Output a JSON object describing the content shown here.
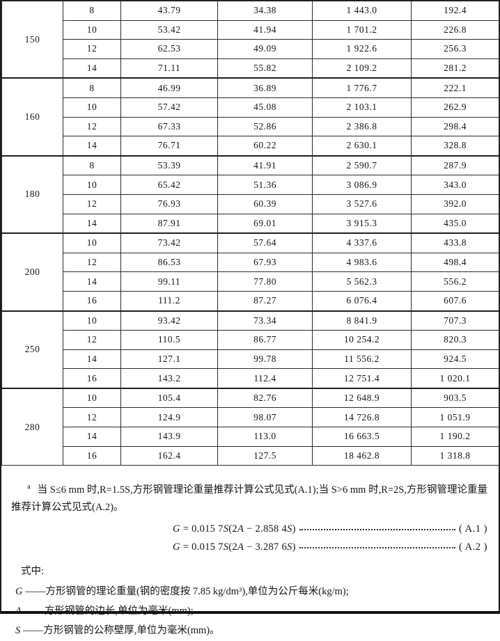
{
  "table": {
    "groups": [
      {
        "size": "150",
        "rows": [
          [
            "8",
            "43.79",
            "34.38",
            "1 443.0",
            "192.4"
          ],
          [
            "10",
            "53.42",
            "41.94",
            "1 701.2",
            "226.8"
          ],
          [
            "12",
            "62.53",
            "49.09",
            "1 922.6",
            "256.3"
          ],
          [
            "14",
            "71.11",
            "55.82",
            "2 109.2",
            "281.2"
          ]
        ]
      },
      {
        "size": "160",
        "rows": [
          [
            "8",
            "46.99",
            "36.89",
            "1 776.7",
            "222.1"
          ],
          [
            "10",
            "57.42",
            "45.08",
            "2 103.1",
            "262.9"
          ],
          [
            "12",
            "67.33",
            "52.86",
            "2 386.8",
            "298.4"
          ],
          [
            "14",
            "76.71",
            "60.22",
            "2 630.1",
            "328.8"
          ]
        ]
      },
      {
        "size": "180",
        "rows": [
          [
            "8",
            "53.39",
            "41.91",
            "2 590.7",
            "287.9"
          ],
          [
            "10",
            "65.42",
            "51.36",
            "3 086.9",
            "343.0"
          ],
          [
            "12",
            "76.93",
            "60.39",
            "3 527.6",
            "392.0"
          ],
          [
            "14",
            "87.91",
            "69.01",
            "3 915.3",
            "435.0"
          ]
        ]
      },
      {
        "size": "200",
        "rows": [
          [
            "10",
            "73.42",
            "57.64",
            "4 337.6",
            "433.8"
          ],
          [
            "12",
            "86.53",
            "67.93",
            "4 983.6",
            "498.4"
          ],
          [
            "14",
            "99.11",
            "77.80",
            "5 562.3",
            "556.2"
          ],
          [
            "16",
            "111.2",
            "87.27",
            "6 076.4",
            "607.6"
          ]
        ]
      },
      {
        "size": "250",
        "rows": [
          [
            "10",
            "93.42",
            "73.34",
            "8 841.9",
            "707.3"
          ],
          [
            "12",
            "110.5",
            "86.77",
            "10 254.2",
            "820.3"
          ],
          [
            "14",
            "127.1",
            "99.78",
            "11 556.2",
            "924.5"
          ],
          [
            "16",
            "143.2",
            "112.4",
            "12 751.4",
            "1 020.1"
          ]
        ]
      },
      {
        "size": "280",
        "rows": [
          [
            "10",
            "105.4",
            "82.76",
            "12 648.9",
            "903.5"
          ],
          [
            "12",
            "124.9",
            "98.07",
            "14 726.8",
            "1 051.9"
          ],
          [
            "14",
            "143.9",
            "113.0",
            "16 663.5",
            "1 190.2"
          ],
          [
            "16",
            "162.4",
            "127.5",
            "18 462.8",
            "1 318.8"
          ]
        ]
      }
    ]
  },
  "notes": {
    "footnote_marker": "a",
    "footnote_text": "当 S≤6 mm 时,R=1.5S,方形钢管理论重量推荐计算公式见式(A.1);当 S>6 mm 时,R=2S,方形钢管理论重量推荐计算公式见式(A.2)。",
    "formulas": [
      {
        "lhs": "G",
        "m1": " = 0.015 7",
        "v1": "S",
        "m2": "(2",
        "v2": "A",
        "m3": " − 2.858 4",
        "v3": "S",
        "m4": ")",
        "number": "( A.1 )"
      },
      {
        "lhs": "G",
        "m1": " = 0.015 7",
        "v1": "S",
        "m2": "(2",
        "v2": "A",
        "m3": " − 3.287 6",
        "v3": "S",
        "m4": ")",
        "number": "( A.2 )"
      }
    ],
    "where_label": "式中:",
    "definitions": [
      {
        "symbol": "G",
        "text": "——方形钢管的理论重量(钢的密度按 7.85 kg/dm³),单位为公斤每米(kg/m);"
      },
      {
        "symbol": "A",
        "text": "——方形钢管的边长,单位为毫米(mm);"
      },
      {
        "symbol": "S",
        "text": "——方形钢管的公称壁厚,单位为毫米(mm)。"
      }
    ]
  }
}
